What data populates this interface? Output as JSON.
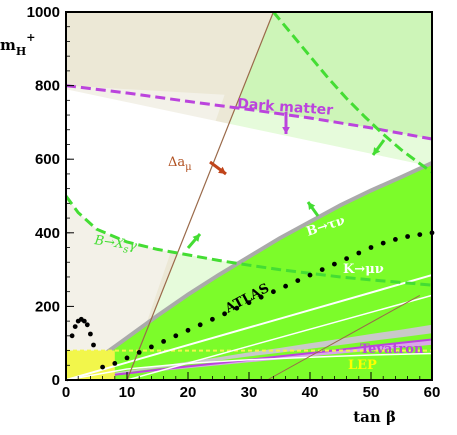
{
  "chart_data": {
    "type": "line",
    "x_axis": {
      "label": "tan β",
      "range": [
        0,
        60
      ],
      "ticks": [
        "0",
        "10",
        "20",
        "30",
        "40",
        "50",
        "60"
      ]
    },
    "y_axis": {
      "label": "m",
      "label_sub": "H",
      "label_sup": "+",
      "range": [
        0,
        1000
      ],
      "ticks": [
        "0",
        "200",
        "400",
        "600",
        "800",
        "1000"
      ]
    },
    "colors": {
      "green_bright": "#7cfc2a",
      "green_pale": "#cdf5b8",
      "green_verypale": "#e6fbdb",
      "gray_band": "#c9c9c9",
      "yellow": "#f2f64b",
      "purple": "#bb44dd",
      "dashed_green": "#44dd33",
      "brown_line": "#9a6a4a",
      "arrow_red": "#c0441a"
    },
    "annotations": {
      "dark_matter": "Dark matter",
      "delta_a_mu": "Δa",
      "delta_a_mu_sub": "μ",
      "b_xs_gamma": "B→X",
      "b_xs_gamma_sub": "s",
      "b_xs_gamma_tail": "γ",
      "b_tau_nu": "B→τν",
      "k_mu_nu": "K→μν",
      "atlas": "ATLAS",
      "tevatron": "Tevatron",
      "lep": "LEP"
    },
    "series": [
      {
        "name": "ATLAS",
        "style": "dots",
        "x": [
          1,
          1.5,
          2,
          2.5,
          3,
          3.5,
          4,
          4.5,
          6,
          8,
          10,
          12,
          14,
          16,
          18,
          20,
          22,
          24,
          26,
          28,
          30,
          32,
          34,
          36,
          38,
          40,
          42,
          44,
          46,
          48,
          50,
          52,
          54,
          56,
          58,
          60
        ],
        "y": [
          120,
          145,
          160,
          165,
          160,
          150,
          125,
          95,
          35,
          45,
          60,
          75,
          90,
          105,
          120,
          135,
          150,
          165,
          180,
          195,
          210,
          225,
          240,
          255,
          270,
          285,
          300,
          315,
          330,
          345,
          360,
          372,
          382,
          390,
          395,
          400
        ]
      },
      {
        "name": "Dark matter",
        "style": "dashed",
        "x": [
          0,
          10,
          20,
          30,
          40,
          50,
          60
        ],
        "y": [
          800,
          780,
          757,
          735,
          712,
          685,
          655
        ]
      },
      {
        "name": "B→X_sγ",
        "style": "dashed",
        "x": [
          0,
          2,
          5,
          10,
          15,
          20,
          25,
          30,
          35,
          40,
          45,
          50,
          55,
          60
        ],
        "y": [
          500,
          455,
          410,
          375,
          355,
          340,
          325,
          312,
          300,
          290,
          280,
          272,
          265,
          258
        ]
      },
      {
        "name": "B→τν boundary",
        "style": "dashed",
        "x": [
          34,
          37,
          40,
          43,
          46,
          49,
          52,
          55,
          58,
          60
        ],
        "y": [
          1000,
          940,
          880,
          820,
          765,
          715,
          668,
          625,
          588,
          565
        ]
      }
    ],
    "bands": {
      "btaunu_lower_x": [
        0,
        5,
        10,
        15,
        20,
        25,
        30,
        35,
        40,
        45,
        50,
        55,
        60
      ],
      "btaunu_lower_y": [
        0,
        55,
        115,
        175,
        232,
        285,
        335,
        385,
        430,
        475,
        515,
        552,
        590
      ],
      "gray_top_y": [
        0,
        12,
        25,
        37,
        50,
        62,
        75,
        87,
        100,
        112,
        125,
        137,
        150
      ],
      "gray_bottom_y": [
        0,
        10,
        21,
        32,
        42,
        53,
        64,
        74,
        85,
        95,
        106,
        116,
        127
      ],
      "purple_top_y": [
        0,
        9,
        18,
        28,
        37,
        46,
        55,
        64,
        73,
        82,
        92,
        101,
        110
      ],
      "purple_bottom_y": [
        0,
        8,
        16,
        24,
        32,
        40,
        48,
        56,
        64,
        72,
        80,
        88,
        96
      ],
      "kmunu_x": [
        0,
        60
      ],
      "kmunu_y": [
        0,
        285
      ],
      "lep": {
        "x": [
          0,
          60
        ],
        "y": [
          0,
          80
        ]
      },
      "tevatron_x": [
        0,
        10,
        20,
        30,
        40,
        50,
        60
      ],
      "tevatron_y": [
        0,
        30,
        45,
        55,
        62,
        68,
        72
      ],
      "damu_x": [
        10,
        34
      ],
      "damu_y": [
        0,
        1000
      ],
      "damu2_x": [
        33,
        58
      ],
      "damu2_y": [
        0,
        230
      ]
    }
  }
}
